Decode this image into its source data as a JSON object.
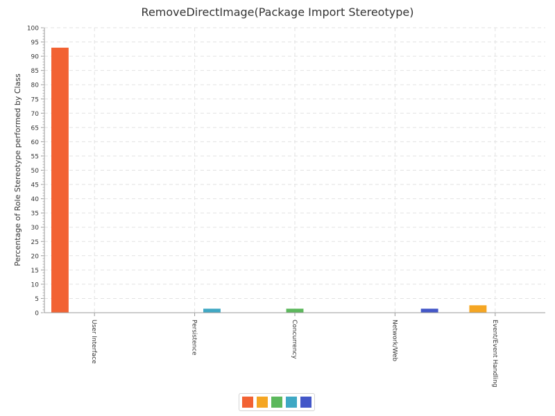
{
  "chart_data": {
    "type": "bar",
    "title": "RemoveDirectImage(Package Import Stereotype)",
    "xlabel": "",
    "ylabel": "Percentage of Role Stereotype performed by Class",
    "ylim": [
      0,
      100
    ],
    "ytick_step": 5,
    "grid": true,
    "legend_placement": "bottom-center",
    "categories": [
      "User Interface",
      "Persistence",
      "Concurrency",
      "Network/Web",
      "Event/Event Handling"
    ],
    "series": [
      {
        "color": "#f26233",
        "values": [
          93,
          0,
          0,
          0,
          0
        ]
      },
      {
        "color": "#f5a623",
        "values": [
          0,
          0,
          0,
          0,
          2.6
        ]
      },
      {
        "color": "#5cb85c",
        "values": [
          0,
          0,
          1.4,
          0,
          0
        ]
      },
      {
        "color": "#3fa8c4",
        "values": [
          0,
          1.4,
          0,
          0,
          0
        ]
      },
      {
        "color": "#4357c8",
        "values": [
          0,
          0,
          0,
          1.4,
          0
        ]
      }
    ]
  }
}
